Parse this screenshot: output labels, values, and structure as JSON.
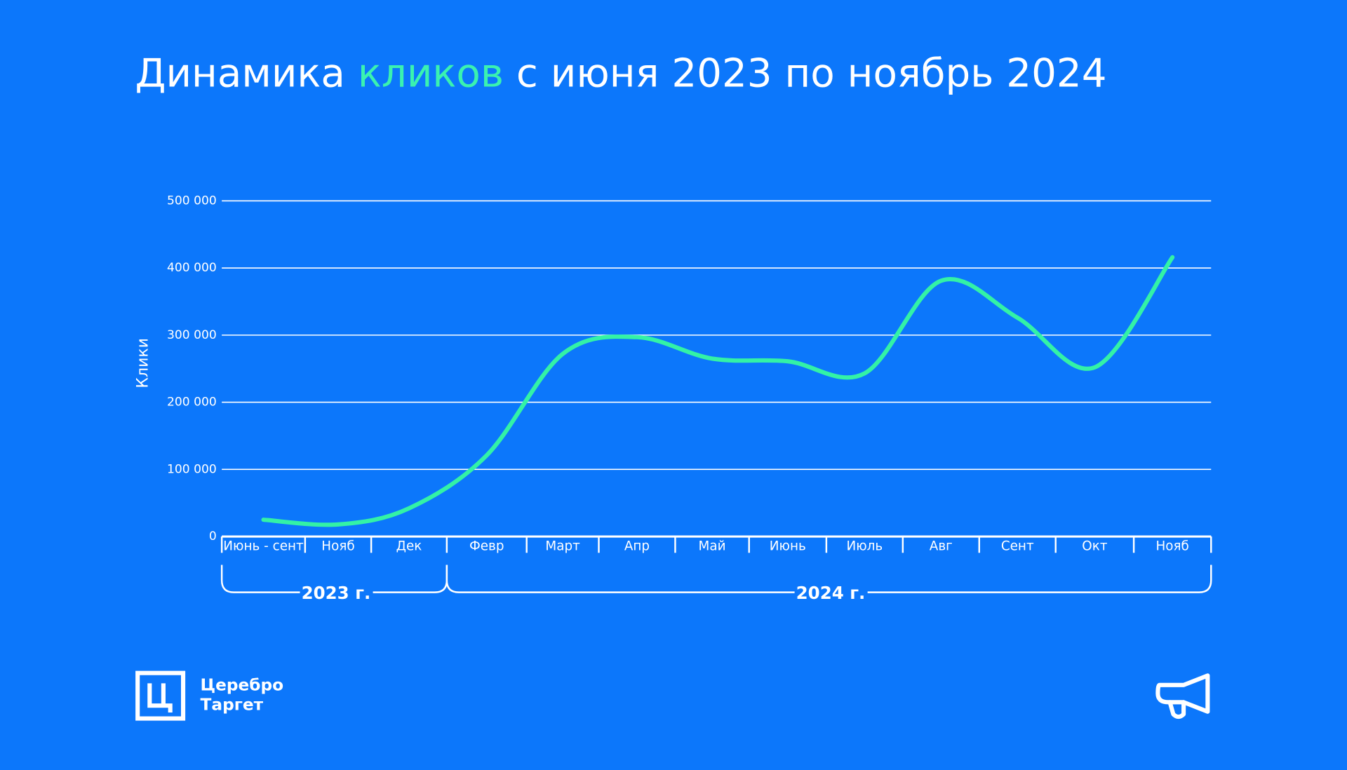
{
  "chart_data": {
    "type": "line",
    "title_parts": [
      "Динамика ",
      "кликов",
      " с июня 2023 по ноябрь 2024"
    ],
    "title_highlight_color": "#3af2b0",
    "y_label": "Клики",
    "categories": [
      "Июнь - сент",
      "Нояб",
      "Дек",
      "Февр",
      "Март",
      "Апр",
      "Май",
      "Июнь",
      "Июль",
      "Авг",
      "Сент",
      "Окт",
      "Нояб"
    ],
    "x_groups": [
      "2023 г.",
      "2024 г."
    ],
    "series": [
      {
        "name": "Клики",
        "color": "#33f2a6",
        "values": [
          25000,
          18000,
          42000,
          121000,
          272000,
          297000,
          265000,
          261000,
          243000,
          381000,
          326000,
          252000,
          416000
        ]
      }
    ],
    "ylim": [
      0,
      500000
    ],
    "yticks": [
      0,
      {
        "value": 100000,
        "label": "100 000"
      },
      {
        "value": 200000,
        "label": "200 000"
      },
      {
        "value": 300000,
        "label": "300 000"
      },
      {
        "value": 400000,
        "label": "400 000"
      },
      {
        "value": 500000,
        "label": "500 000"
      }
    ],
    "grid": true
  },
  "logo": {
    "lines": [
      "Церебро",
      "Таргет"
    ]
  }
}
